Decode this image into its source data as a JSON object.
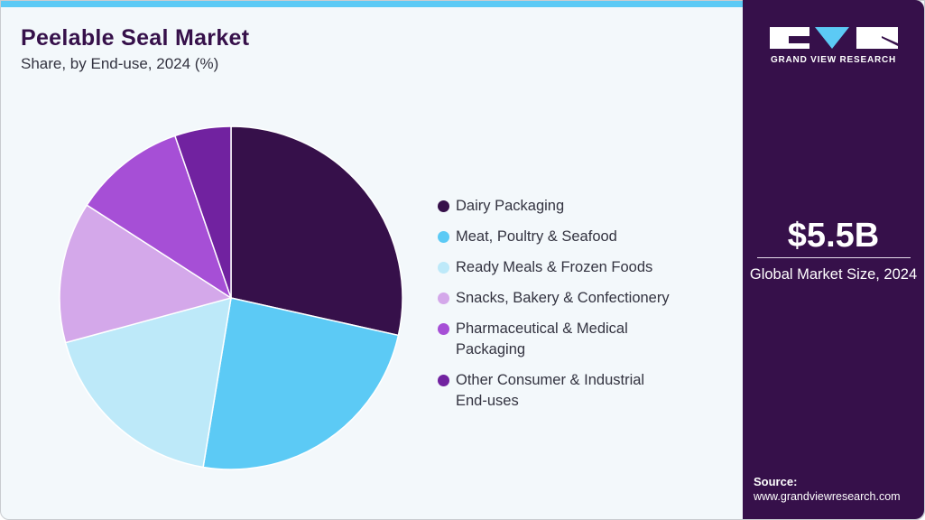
{
  "header": {
    "title": "Peelable Seal Market",
    "subtitle": "Share, by End-use, 2024 (%)"
  },
  "sidebar": {
    "logo_text": "GRAND VIEW RESEARCH",
    "market_size": "$5.5B",
    "market_size_label": "Global Market Size, 2024",
    "source_heading": "Source:",
    "source_url": "www.grandviewresearch.com"
  },
  "colors": {
    "accent_bar": "#5ccaf5",
    "sidebar_bg": "#36104a",
    "title": "#36104a"
  },
  "legend": [
    {
      "label": "Dairy Packaging",
      "color": "#36104a"
    },
    {
      "label": "Meat, Poultry & Seafood",
      "color": "#5ccaf5"
    },
    {
      "label": "Ready Meals & Frozen Foods",
      "color": "#bde9f9"
    },
    {
      "label": "Snacks, Bakery & Confectionery",
      "color": "#d4a8ea"
    },
    {
      "label": "Pharmaceutical & Medical Packaging",
      "color": "#a64fd6"
    },
    {
      "label": "Other Consumer & Industrial End-uses",
      "color": "#7122a0"
    }
  ],
  "chart_data": {
    "type": "pie",
    "title": "Peelable Seal Market",
    "subtitle": "Share, by End-use, 2024 (%)",
    "categories": [
      "Dairy Packaging",
      "Meat, Poultry & Seafood",
      "Ready Meals & Frozen Foods",
      "Snacks, Bakery & Confectionery",
      "Pharmaceutical & Medical Packaging",
      "Other Consumer & Industrial End-uses"
    ],
    "values": [
      28.5,
      24.1,
      18.2,
      13.3,
      10.6,
      5.3
    ],
    "colors": [
      "#36104a",
      "#5ccaf5",
      "#bde9f9",
      "#d4a8ea",
      "#a64fd6",
      "#7122a0"
    ],
    "start_angle": "12 o'clock, clockwise",
    "legend_position": "right",
    "annotations": [
      "$5.5B Global Market Size, 2024"
    ]
  }
}
